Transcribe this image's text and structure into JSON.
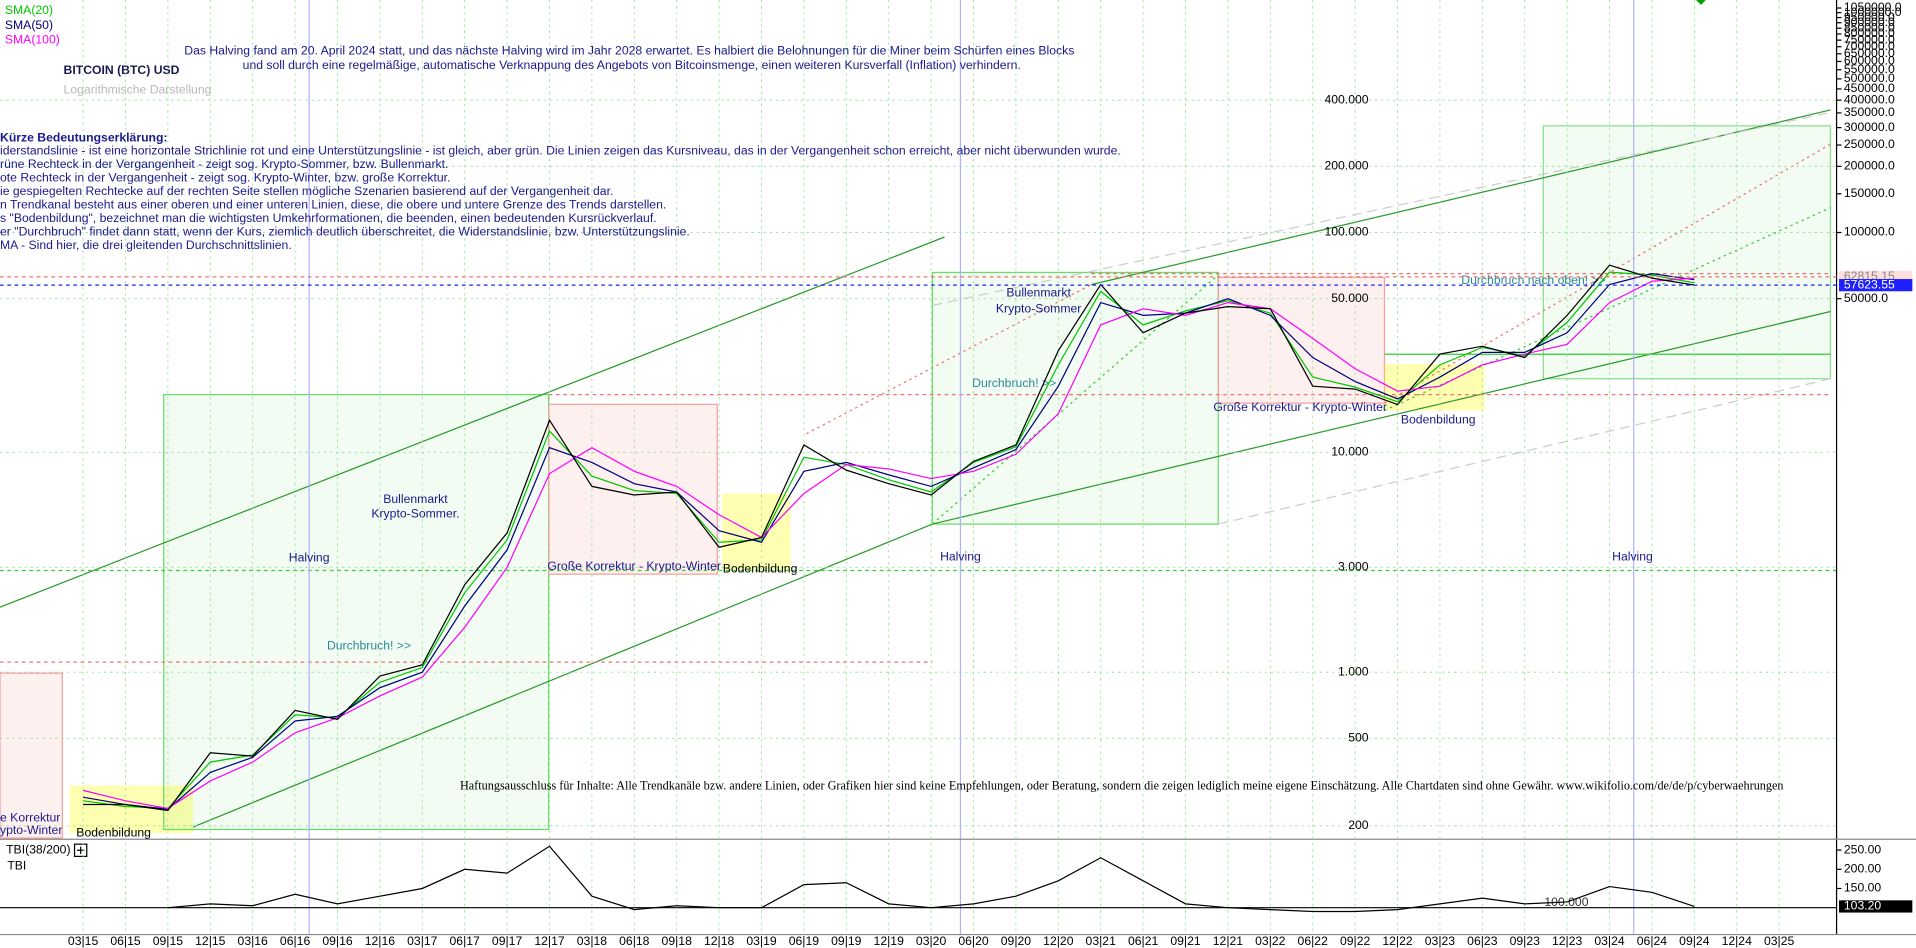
{
  "chart_data": [
    {
      "type": "line",
      "title": "BITCOIN (BTC) USD",
      "subtitle": "Logarithmische Darstellung",
      "log_scale": true,
      "grid": true,
      "color": "#000000",
      "categories": [
        "03|15",
        "06|15",
        "09|15",
        "12|15",
        "03|16",
        "06|16",
        "09|16",
        "12|16",
        "03|17",
        "06|17",
        "09|17",
        "12|17",
        "03|18",
        "06|18",
        "09|18",
        "12|18",
        "03|19",
        "06|19",
        "09|19",
        "12|19",
        "03|20",
        "06|20",
        "09|20",
        "12|20",
        "03|21",
        "06|21",
        "09|21",
        "12|21",
        "03|22",
        "06|22",
        "09|22",
        "12|22",
        "03|23",
        "06|23",
        "09|23",
        "12|23",
        "03|24",
        "06|24",
        "09|24",
        "12|24",
        "03|25"
      ],
      "values": [
        250,
        250,
        235,
        430,
        415,
        670,
        610,
        960,
        1080,
        2500,
        4300,
        14000,
        7000,
        6400,
        6600,
        3700,
        4100,
        10800,
        8300,
        7200,
        6400,
        9100,
        10800,
        29000,
        58000,
        35000,
        43000,
        46000,
        45000,
        20000,
        19400,
        16500,
        28000,
        30400,
        27000,
        42000,
        71000,
        62000,
        57623.55,
        null,
        null
      ],
      "series": [
        {
          "name": "SMA(20)",
          "color": "#00c800",
          "values": [
            260,
            245,
            240,
            390,
            420,
            640,
            620,
            900,
            1050,
            2300,
            4000,
            12500,
            7800,
            6700,
            6500,
            3900,
            4000,
            9500,
            8800,
            7500,
            6600,
            9000,
            10600,
            25000,
            54000,
            38000,
            44000,
            49000,
            43000,
            22000,
            19800,
            17000,
            25000,
            30000,
            27500,
            39000,
            66000,
            64000,
            59000,
            null,
            null
          ]
        },
        {
          "name": "SMA(50)",
          "color": "#000080",
          "values": [
            270,
            250,
            238,
            350,
            410,
            600,
            630,
            850,
            1000,
            2000,
            3600,
            10500,
            9000,
            7200,
            6600,
            4400,
            3900,
            8200,
            9000,
            7900,
            7000,
            8500,
            10300,
            20000,
            48000,
            42000,
            43000,
            50000,
            42000,
            27000,
            21000,
            17500,
            22000,
            28500,
            28500,
            35000,
            58000,
            65000,
            61000,
            null,
            null
          ]
        },
        {
          "name": "SMA(100)",
          "color": "#ff00ff",
          "values": [
            290,
            260,
            240,
            320,
            390,
            530,
            620,
            780,
            950,
            1600,
            3000,
            8000,
            10500,
            8200,
            7000,
            5200,
            4100,
            6500,
            8800,
            8400,
            7600,
            8200,
            9800,
            15000,
            38000,
            45000,
            42000,
            48000,
            45000,
            33000,
            24000,
            19000,
            20000,
            25000,
            28000,
            31000,
            48000,
            60000,
            62000,
            null,
            null
          ]
        }
      ],
      "ylim": [
        176,
        1142000
      ],
      "yticks": [
        200,
        500,
        {
          "value": 1000,
          "label": "1.000"
        },
        {
          "value": 3000,
          "label": "3.000"
        },
        {
          "value": 10000,
          "label": "10.000"
        },
        {
          "value": 50000,
          "label": "50.000"
        },
        {
          "value": 100000,
          "label": "100.000"
        },
        {
          "value": 200000,
          "label": "200.000"
        },
        {
          "value": 400000,
          "label": "400.000"
        }
      ],
      "right_ticks": [
        {
          "value": 50000,
          "label": "50000.0"
        },
        {
          "value": 100000,
          "label": "100000.0"
        },
        {
          "value": 150000,
          "label": "150000.0"
        },
        {
          "value": 200000,
          "label": "200000.0"
        },
        {
          "value": 250000,
          "label": "250000.0"
        },
        {
          "value": 300000,
          "label": "300000.0"
        },
        {
          "value": 350000,
          "label": "350000.0"
        },
        {
          "value": 400000,
          "label": "400000.0"
        },
        {
          "value": 450000,
          "label": "450000.0"
        },
        {
          "value": 500000,
          "label": "500000.0"
        },
        {
          "value": 550000,
          "label": "550000.0"
        },
        {
          "value": 600000,
          "label": "600000.0"
        },
        {
          "value": 650000,
          "label": "650000.0"
        },
        {
          "value": 700000,
          "label": "700000.0"
        },
        {
          "value": 750000,
          "label": "750000.0"
        },
        {
          "value": 800000,
          "label": "800000.0"
        },
        {
          "value": 850000,
          "label": "850000.0"
        },
        {
          "value": 900000,
          "label": "900000.0"
        },
        {
          "value": 950000,
          "label": "950000.0"
        },
        {
          "value": 1000000,
          "label": "1000000.0"
        },
        {
          "value": 1050000,
          "label": "1050000.0"
        }
      ],
      "price_labels": [
        {
          "value": 62815.15,
          "color": "#ffdede"
        },
        {
          "value": 57623.55,
          "color": "#1f1fff"
        }
      ],
      "annotations": [
        "Das Halving fand am 20. April 2024 statt, und das nächste Halving wird im Jahr 2028 erwartet. Es halbiert die Belohnungen für die Miner beim Schürfen eines Blocks",
        "und soll durch eine regelmäßige, automatische Verknappung des Angebots von Bitcoinsmenge, einen weiteren Kursverfall (Inflation) verhindern.",
        "Bullenmarkt",
        "Krypto-Sommer.",
        "Halving",
        "Halving",
        "Halving",
        "Durchbruch! >>",
        "Durchbruch! >>",
        "Durchbruch nach oben! >>",
        "Große Korrektur - Krypto-Winter",
        "Bodenbildung",
        "Bullenmarkt",
        "Krypto-Sommer",
        "Große Korrektur - Krypto-Winter",
        "Bodenbildung",
        "Bodenbildung",
        "e Korrektur",
        "ypto-Winter",
        "Haftungsausschluss für Inhalte: Alle Trendkanäle bzw. andere Linien, oder Grafiken hier sind keine Empfehlungen, oder Beratung, sondern die zeigen lediglich meine eigene Einschätzung. Alle Chartdaten sind ohne Gewähr.  www.wikifolio.com/de/de/p/cyberwaehrungen"
      ],
      "explanation": [
        "Kürze Bedeutungserklärung:",
        "iderstandslinie - ist eine horizontale Strichlinie rot und eine Unterstützungslinie - ist gleich, aber grün. Die Linien zeigen das Kursniveau, das in der Vergangenheit schon erreicht, aber nicht überwunden wurde.",
        "rüne Rechteck in der Vergangenheit - zeigt sog. Krypto-Sommer, bzw. Bullenmarkt.",
        "ote Rechteck in der Vergangenheit - zeigt sog. Krypto-Winter, bzw. große Korrektur.",
        "ie gespiegelten Rechtecke auf der rechten Seite stellen mögliche Szenarien basierend auf der Vergangenheit dar.",
        "n Trendkanal besteht aus einer oberen und einer unteren Linien, diese, die obere und untere Grenze des Trends darstellen.",
        "s \"Bodenbildung\", bezeichnet man die wichtigsten Umkehrformationen, die beenden, einen bedeutenden Kursrückverlauf.",
        "er \"Durchbruch\" findet dann statt, wenn der Kurs, ziemlich deutlich überschreitet, die Widerstandslinie, bzw. Unterstützungslinie.",
        "MA - Sind hier, die drei gleitenden Durchschnittslinien."
      ]
    },
    {
      "type": "line",
      "legend": "TBI(38/200)",
      "name": "TBI",
      "color": "#000000",
      "values": [
        null,
        null,
        100,
        110,
        105,
        135,
        110,
        130,
        150,
        200,
        190,
        260,
        130,
        95,
        105,
        100,
        100,
        160,
        165,
        110,
        100,
        110,
        130,
        170,
        230,
        170,
        110,
        100,
        95,
        90,
        90,
        95,
        110,
        125,
        110,
        115,
        155,
        140,
        103.2,
        null,
        null
      ],
      "ylim": [
        30,
        275
      ],
      "yticks": [
        {
          "value": 250,
          "label": "250.00"
        },
        {
          "value": 200,
          "label": "200.00"
        },
        {
          "value": 150,
          "label": "150.00"
        }
      ],
      "reference": {
        "value": 100,
        "label": "100.000"
      },
      "current": {
        "value": 103.2,
        "label": "103.20"
      }
    }
  ]
}
